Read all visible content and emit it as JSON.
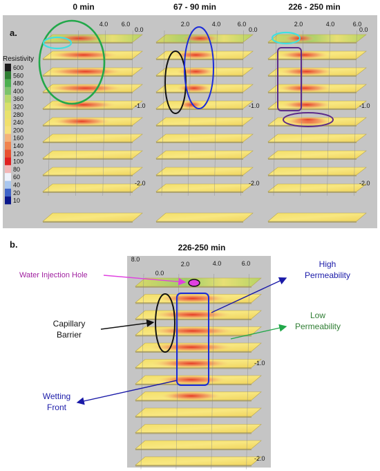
{
  "panel_a": {
    "label": "a.",
    "legend_title": "Resistivity",
    "legend_ticks": [
      "600",
      "560",
      "480",
      "400",
      "360",
      "320",
      "280",
      "240",
      "200",
      "160",
      "140",
      "120",
      "100",
      "80",
      "60",
      "40",
      "20",
      "10"
    ],
    "legend_colors": [
      "#1b1b1b",
      "#2e7d32",
      "#4caf50",
      "#7cc36b",
      "#b7d86b",
      "#d9e06a",
      "#e9e26c",
      "#f1e06c",
      "#f7e27a",
      "#f5b27a",
      "#f0844f",
      "#e8502f",
      "#e02020",
      "#f3b6b6",
      "#eef2fb",
      "#a9c7ef",
      "#3e63c9",
      "#0a168a"
    ],
    "panels": [
      {
        "title": "0 min",
        "y_labels": [
          "0.0",
          "-1.0",
          "-2.0"
        ],
        "x_labels": [
          "4.0",
          "6.0"
        ]
      },
      {
        "title": "67 - 90 min",
        "y_labels": [
          "0.0",
          "-1.0",
          "-2.0"
        ],
        "x_labels": [
          "2.0",
          "4.0",
          "6.0"
        ]
      },
      {
        "title": "226 - 250 min",
        "y_labels": [
          "0.0",
          "-1.0",
          "-2.0"
        ],
        "x_labels": [
          "2.0",
          "4.0",
          "6.0"
        ]
      }
    ]
  },
  "panel_b": {
    "label": "b.",
    "title": "226-250 min",
    "x_labels": [
      "8.0",
      "0.0",
      "2.0",
      "4.0",
      "6.0"
    ],
    "y_labels": [
      "-1.0",
      "-2.0"
    ],
    "annotations": {
      "water_injection": "Water Injection Hole",
      "high_perm_1": "High",
      "high_perm_2": "Permeability",
      "capillary_1": "Capillary",
      "capillary_2": "Barrier",
      "low_perm_1": "Low",
      "low_perm_2": "Permeability",
      "wetting_1": "Wetting",
      "wetting_2": "Front"
    }
  },
  "colors": {
    "green": "#22a84a",
    "blue": "#1a2bd8",
    "cyan": "#3fe0e0",
    "black": "#111111",
    "purple": "#5b2a8a",
    "magenta": "#e040e0",
    "darkgreen": "#2e7d32",
    "navy": "#1a1aa8"
  }
}
